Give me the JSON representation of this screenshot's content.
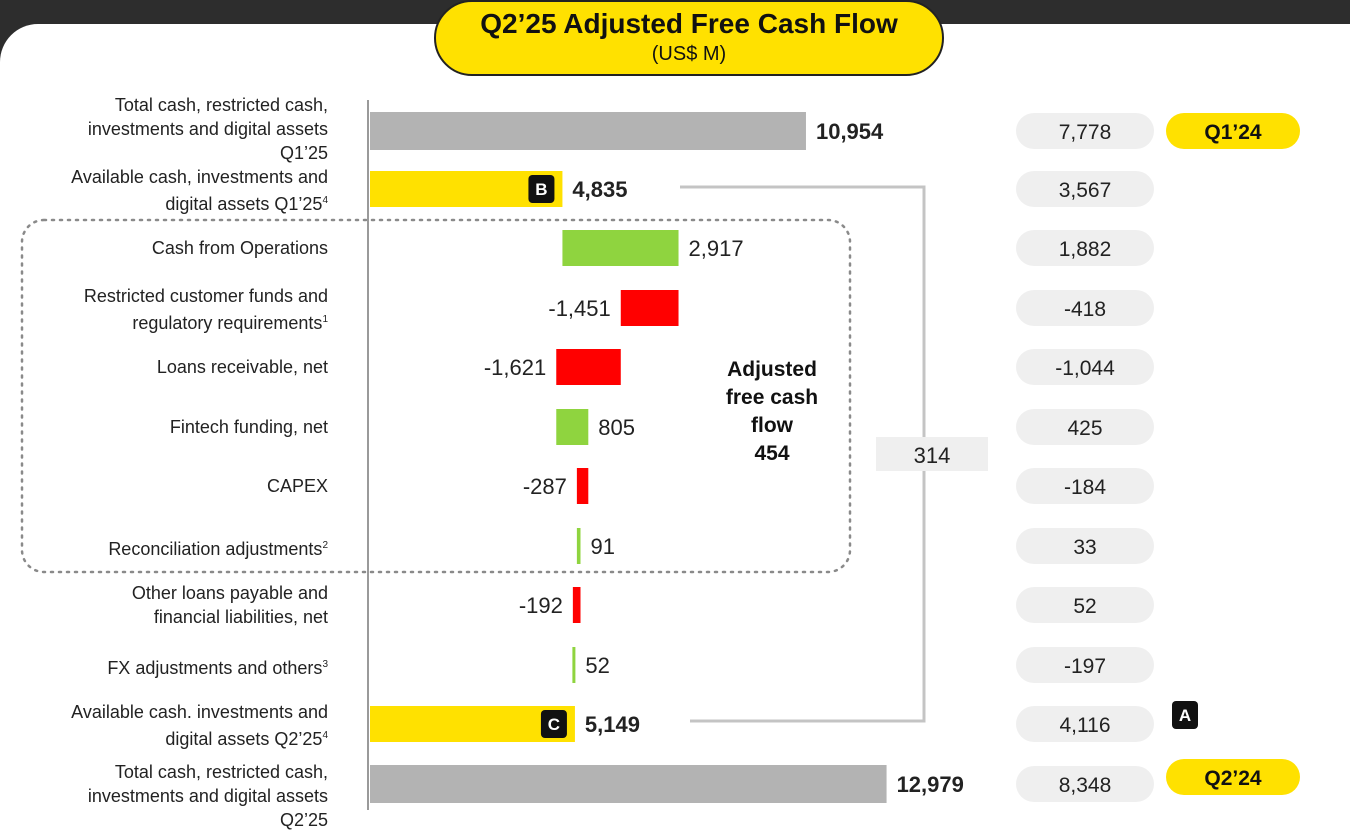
{
  "title": "Q2’25 Adjusted Free Cash Flow",
  "subtitle": "(US$ M)",
  "rows": [
    {
      "label_lines": [
        "Total cash, restricted cash,",
        "investments and digital assets",
        "Q1’25"
      ],
      "sup": "",
      "value": 10954,
      "value_label": "10,954",
      "kind": "total",
      "prev": "7,778"
    },
    {
      "label_lines": [
        "Available cash, investments and",
        "digital assets Q1’25"
      ],
      "sup": "4",
      "value": 4835,
      "value_label": "4,835",
      "kind": "available",
      "badge": "B",
      "prev": "3,567"
    },
    {
      "label_lines": [
        "Cash from Operations"
      ],
      "sup": "",
      "value": 2917,
      "value_label": "2,917",
      "kind": "delta",
      "prev": "1,882"
    },
    {
      "label_lines": [
        "Restricted customer funds and",
        "regulatory requirements"
      ],
      "sup": "1",
      "value": -1451,
      "value_label": "-1,451",
      "kind": "delta",
      "prev": "-418"
    },
    {
      "label_lines": [
        "Loans receivable, net"
      ],
      "sup": "",
      "value": -1621,
      "value_label": "-1,621",
      "kind": "delta",
      "prev": "-1,044"
    },
    {
      "label_lines": [
        "Fintech funding, net"
      ],
      "sup": "",
      "value": 805,
      "value_label": "805",
      "kind": "delta",
      "prev": "425"
    },
    {
      "label_lines": [
        "CAPEX"
      ],
      "sup": "",
      "value": -287,
      "value_label": "-287",
      "kind": "delta",
      "prev": "-184"
    },
    {
      "label_lines": [
        "Reconciliation adjustments"
      ],
      "sup": "2",
      "value": 91,
      "value_label": "91",
      "kind": "delta",
      "prev": "33"
    },
    {
      "label_lines": [
        "Other loans payable and",
        "financial liabilities, net"
      ],
      "sup": "",
      "value": -192,
      "value_label": "-192",
      "kind": "delta",
      "prev": "52"
    },
    {
      "label_lines": [
        "FX adjustments and others"
      ],
      "sup": "3",
      "value": 52,
      "value_label": "52",
      "kind": "delta",
      "prev": "-197"
    },
    {
      "label_lines": [
        "Available cash. investments and",
        "digital assets Q2’25"
      ],
      "sup": "4",
      "value": 5149,
      "value_label": "5,149",
      "kind": "available",
      "badge": "C",
      "prev": "4,116"
    },
    {
      "label_lines": [
        "Total cash, restricted cash,",
        "investments and digital assets",
        "Q2’25"
      ],
      "sup": "",
      "value": 12979,
      "value_label": "12,979",
      "kind": "total",
      "prev": "8,348"
    }
  ],
  "chart_data": {
    "type": "bar",
    "title": "Q2’25 Adjusted Free Cash Flow",
    "subtitle": "(US$ M)",
    "categories": [
      "Total cash, restricted cash, investments and digital assets Q1’25",
      "Available cash, investments and digital assets Q1’25",
      "Cash from Operations",
      "Restricted customer funds and regulatory requirements",
      "Loans receivable, net",
      "Fintech funding, net",
      "CAPEX",
      "Reconciliation adjustments",
      "Other loans payable and financial liabilities, net",
      "FX adjustments and others",
      "Available cash. investments and digital assets Q2’25",
      "Total cash, restricted cash, investments and digital assets Q2’25"
    ],
    "values": [
      10954,
      4835,
      2917,
      -1451,
      -1621,
      805,
      -287,
      91,
      -192,
      52,
      5149,
      12979
    ],
    "comparison_values": [
      7778,
      3567,
      1882,
      -418,
      -1044,
      425,
      -184,
      33,
      52,
      -197,
      4116,
      8348
    ]
  },
  "afcf": {
    "lines": [
      "Adjusted",
      "free cash",
      "flow",
      "454"
    ]
  },
  "bracket_value": "314",
  "prev_period_tags": {
    "top": "Q1’24",
    "bottom": "Q2’24"
  },
  "badge_a": "A",
  "colors": {
    "total": "#b3b3b3",
    "available": "#ffe100",
    "positive": "#8fd43f",
    "negative": "#ff0000",
    "pill": "#efefef",
    "tag": "#ffe100",
    "badge": "#111111"
  }
}
